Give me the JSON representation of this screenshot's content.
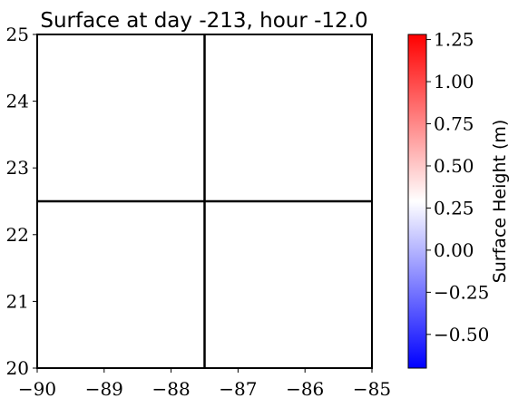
{
  "chart_data": {
    "type": "heatmap",
    "title": "Surface at day -213, hour -12.0",
    "xlabel": "",
    "ylabel": "",
    "xlim": [
      -90,
      -85
    ],
    "ylim": [
      20,
      25
    ],
    "x_ticks": [
      -90,
      -89,
      -88,
      -87,
      -86,
      -85
    ],
    "y_ticks": [
      20,
      21,
      22,
      23,
      24,
      25
    ],
    "x_tick_labels": [
      "−90",
      "−89",
      "−88",
      "−87",
      "−86",
      "−85"
    ],
    "y_tick_labels": [
      "20",
      "21",
      "22",
      "23",
      "24",
      "25"
    ],
    "grid_lines": {
      "x": [
        -87.5
      ],
      "y": [
        22.5
      ]
    },
    "field_values": "uniform",
    "colorbar": {
      "label": "Surface Height (m)",
      "cmap": "bwr",
      "vmin": -0.7,
      "vmax": 1.28,
      "ticks": [
        -0.5,
        -0.25,
        0.0,
        0.25,
        0.5,
        0.75,
        1.0,
        1.25
      ],
      "tick_labels": [
        "−0.50",
        "−0.25",
        "0.00",
        "0.25",
        "0.50",
        "0.75",
        "1.00",
        "1.25"
      ],
      "color_low": "#0000ff",
      "color_mid": "#ffffff",
      "color_high": "#ff0000"
    }
  }
}
